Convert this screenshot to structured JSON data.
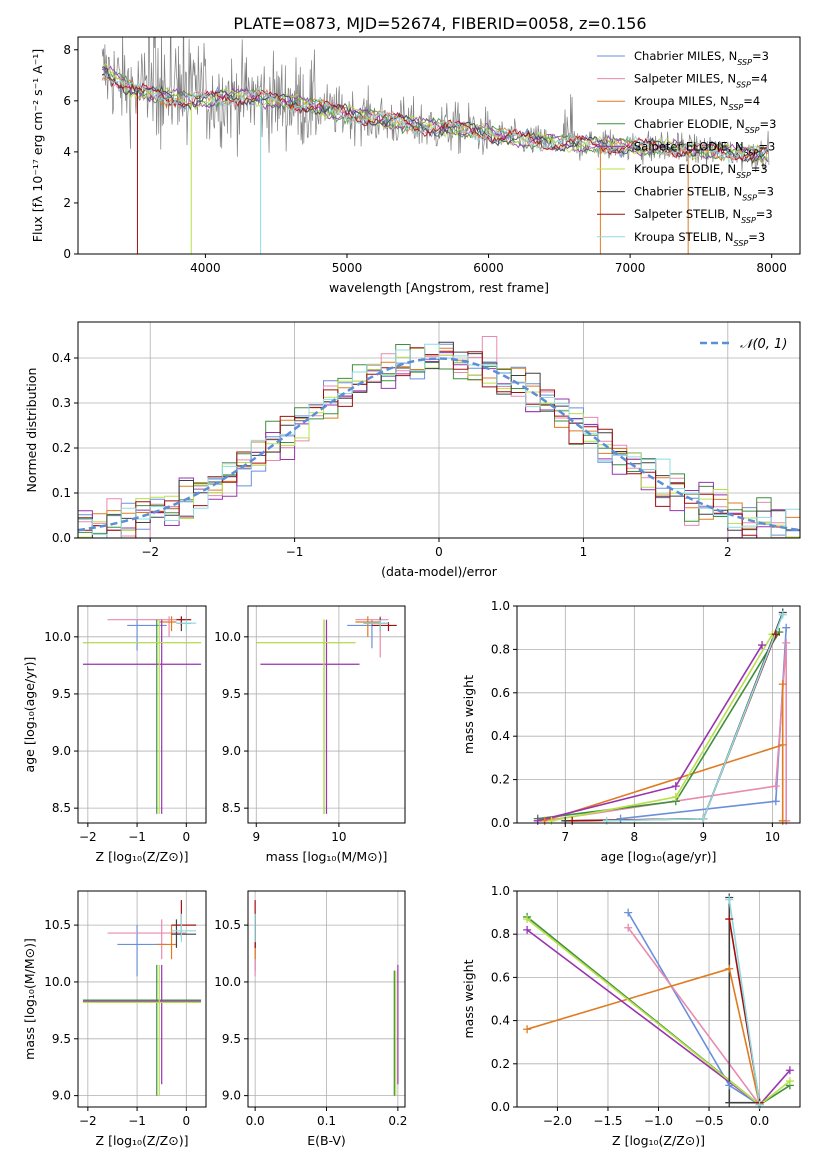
{
  "page": {
    "title": "PLATE=0873, MJD=52674, FIBERID=0058, z=0.156"
  },
  "colors": {
    "Chabrier MILES": "#6a8fdc",
    "Salpeter MILES": "#e88aaf",
    "Kroupa MILES": "#e07b20",
    "Chabrier ELODIE": "#3f8f3f",
    "Salpeter ELODIE": "#9a33b0",
    "Kroupa ELODIE": "#b8e04a",
    "Chabrier STELIB": "#404040",
    "Salpeter STELIB": "#a01010",
    "Kroupa STELIB": "#8fdbe0",
    "data": "#808080",
    "normal": "#5a8fd8"
  },
  "chart_data": [
    {
      "id": "spectrum",
      "type": "line",
      "title": "PLATE=0873, MJD=52674, FIBERID=0058, z=0.156",
      "xlabel": "wavelength [Angstrom, rest frame]",
      "ylabel": "Flux [fλ 10⁻¹⁷ erg cm⁻² s⁻¹ A⁻¹]",
      "xlim": [
        3100,
        8200
      ],
      "ylim": [
        0,
        8.5
      ],
      "xticks": [
        4000,
        5000,
        6000,
        7000,
        8000
      ],
      "yticks": [
        0,
        2,
        4,
        6,
        8
      ],
      "grid": false,
      "legend_position": "right",
      "legend": [
        "Chabrier MILES, N_SSP=3",
        "Salpeter MILES, N_SSP=4",
        "Kroupa MILES, N_SSP=4",
        "Chabrier ELODIE, N_SSP=3",
        "Salpeter ELODIE, N_SSP=3",
        "Kroupa ELODIE, N_SSP=3",
        "Chabrier STELIB, N_SSP=3",
        "Salpeter STELIB, N_SSP=3",
        "Kroupa STELIB, N_SSP=3"
      ],
      "continuum": {
        "x": [
          3300,
          3500,
          3700,
          3900,
          4100,
          4300,
          4500,
          4700,
          4900,
          5100,
          5300,
          5500,
          5700,
          5900,
          6100,
          6300,
          6500,
          6700,
          6900,
          7100,
          7300,
          7500,
          7700,
          7900
        ],
        "y": [
          7.1,
          6.4,
          6.2,
          6.0,
          6.1,
          6.2,
          6.0,
          5.9,
          5.6,
          5.4,
          5.2,
          5.05,
          4.95,
          4.85,
          4.6,
          4.45,
          4.35,
          4.3,
          4.25,
          4.2,
          4.15,
          4.05,
          4.0,
          3.9
        ]
      }
    },
    {
      "id": "residual_hist",
      "type": "line",
      "xlabel": "(data-model)/error",
      "ylabel": "Normed distribution",
      "xlim": [
        -2.5,
        2.5
      ],
      "ylim": [
        0,
        0.48
      ],
      "xticks": [
        -2,
        -1,
        0,
        1,
        2
      ],
      "xtick_labels": [
        "−2",
        "−1",
        "0",
        "1",
        "2"
      ],
      "yticks": [
        0,
        0.1,
        0.2,
        0.3,
        0.4
      ],
      "ytick_labels": [
        "0.0",
        "0.1",
        "0.2",
        "0.3",
        "0.4"
      ],
      "grid": true,
      "legend": [
        "𝒩(0, 1)"
      ],
      "legend_position": "top-right",
      "bin_width": 0.1
    },
    {
      "id": "age_vs_Z",
      "type": "scatter",
      "xlabel": "Z [log₁₀(Z/Z⊙)]",
      "ylabel": "age  [log₁₀(age/yr)]",
      "xlim": [
        -2.2,
        0.4
      ],
      "ylim": [
        8.37,
        10.27
      ],
      "xticks": [
        -2,
        -1,
        0
      ],
      "xtick_labels": [
        "−2",
        "−1",
        "0"
      ],
      "yticks": [
        8.5,
        9.0,
        9.5,
        10.0
      ],
      "ytick_labels": [
        "8.5",
        "9.0",
        "9.5",
        "10.0"
      ],
      "grid": true,
      "crosses": [
        {
          "s": "Chabrier MILES",
          "x": -1.0,
          "xe": [
            -1.2,
            -0.4
          ],
          "y": 10.1,
          "ye": [
            9.88,
            10.15
          ]
        },
        {
          "s": "Salpeter MILES",
          "x": -0.35,
          "xe": [
            -1.6,
            0.0
          ],
          "y": 10.15,
          "ye": [
            10.0,
            10.18
          ]
        },
        {
          "s": "Kroupa MILES",
          "x": -0.3,
          "xe": [
            -0.55,
            -0.2
          ],
          "y": 10.13,
          "ye": [
            10.05,
            10.18
          ]
        },
        {
          "s": "Chabrier ELODIE",
          "x": -0.6,
          "xe": [
            -2.1,
            0.3
          ],
          "y": 9.95,
          "ye": [
            8.45,
            10.15
          ]
        },
        {
          "s": "Salpeter ELODIE",
          "x": -0.5,
          "xe": [
            -2.1,
            0.3
          ],
          "y": 9.76,
          "ye": [
            8.45,
            10.15
          ]
        },
        {
          "s": "Kroupa ELODIE",
          "x": -0.55,
          "xe": [
            -2.1,
            0.3
          ],
          "y": 9.95,
          "ye": [
            8.45,
            10.15
          ]
        },
        {
          "s": "Chabrier STELIB",
          "x": -0.1,
          "xe": [
            -0.2,
            0.1
          ],
          "y": 10.12,
          "ye": [
            10.05,
            10.17
          ]
        },
        {
          "s": "Salpeter STELIB",
          "x": -0.1,
          "xe": [
            -0.2,
            0.1
          ],
          "y": 10.15,
          "ye": [
            10.1,
            10.18
          ]
        },
        {
          "s": "Kroupa STELIB",
          "x": 0.0,
          "xe": [
            -0.2,
            0.2
          ],
          "y": 10.12,
          "ye": [
            10.05,
            10.15
          ]
        }
      ]
    },
    {
      "id": "age_vs_mass",
      "type": "scatter",
      "xlabel": "mass [log₁₀(M/M⊙)]",
      "ylabel": "",
      "xlim": [
        8.9,
        10.8
      ],
      "ylim": [
        8.37,
        10.27
      ],
      "xticks": [
        9,
        10
      ],
      "xtick_labels": [
        "9",
        "10"
      ],
      "yticks": [
        8.5,
        9.0,
        9.5,
        10.0
      ],
      "ytick_labels": [
        "8.5",
        "9.0",
        "9.5",
        "10.0"
      ],
      "grid": true,
      "crosses": [
        {
          "s": "Chabrier MILES",
          "x": 10.4,
          "xe": [
            10.1,
            10.5
          ],
          "y": 10.1,
          "ye": [
            9.9,
            10.15
          ]
        },
        {
          "s": "Salpeter MILES",
          "x": 10.5,
          "xe": [
            10.2,
            10.6
          ],
          "y": 10.15,
          "ye": [
            9.82,
            10.18
          ]
        },
        {
          "s": "Kroupa MILES",
          "x": 10.35,
          "xe": [
            10.2,
            10.5
          ],
          "y": 10.13,
          "ye": [
            10.0,
            10.18
          ]
        },
        {
          "s": "Chabrier ELODIE",
          "x": 9.82,
          "xe": [
            9.0,
            10.2
          ],
          "y": 9.95,
          "ye": [
            8.45,
            10.15
          ]
        },
        {
          "s": "Salpeter ELODIE",
          "x": 9.85,
          "xe": [
            9.05,
            10.25
          ],
          "y": 9.76,
          "ye": [
            8.45,
            10.15
          ]
        },
        {
          "s": "Kroupa ELODIE",
          "x": 9.82,
          "xe": [
            9.0,
            10.2
          ],
          "y": 9.95,
          "ye": [
            8.45,
            10.15
          ]
        },
        {
          "s": "Chabrier STELIB",
          "x": 10.5,
          "xe": [
            10.3,
            10.6
          ],
          "y": 10.12,
          "ye": [
            10.05,
            10.17
          ]
        },
        {
          "s": "Salpeter STELIB",
          "x": 10.6,
          "xe": [
            10.4,
            10.7
          ],
          "y": 10.1,
          "ye": [
            10.05,
            10.13
          ]
        },
        {
          "s": "Kroupa STELIB",
          "x": 10.5,
          "xe": [
            10.3,
            10.6
          ],
          "y": 10.12,
          "ye": [
            10.05,
            10.15
          ]
        }
      ]
    },
    {
      "id": "weight_vs_age",
      "type": "line",
      "xlabel": "age  [log₁₀(age/yr)]",
      "ylabel": "mass weight",
      "xlim": [
        6.3,
        10.4
      ],
      "ylim": [
        0,
        1.0
      ],
      "xticks": [
        7,
        8,
        9,
        10
      ],
      "xtick_labels": [
        "7",
        "8",
        "9",
        "10"
      ],
      "yticks": [
        0,
        0.2,
        0.4,
        0.6,
        0.8,
        1.0
      ],
      "ytick_labels": [
        "0.0",
        "0.2",
        "0.4",
        "0.6",
        "0.8",
        "1.0"
      ],
      "grid": true,
      "series": [
        {
          "s": "Chabrier MILES",
          "x": [
            7.8,
            10.05,
            10.2
          ],
          "y": [
            0.02,
            0.1,
            0.9
          ]
        },
        {
          "s": "Salpeter MILES",
          "x": [
            6.7,
            10.05,
            10.2,
            10.2
          ],
          "y": [
            0.01,
            0.17,
            0.83,
            0.01
          ]
        },
        {
          "s": "Kroupa MILES",
          "x": [
            6.7,
            10.15,
            10.15,
            10.15
          ],
          "y": [
            0.01,
            0.36,
            0.64,
            0.01
          ]
        },
        {
          "s": "Chabrier ELODIE",
          "x": [
            6.6,
            8.6,
            10.1
          ],
          "y": [
            0.02,
            0.1,
            0.88
          ]
        },
        {
          "s": "Salpeter ELODIE",
          "x": [
            6.6,
            8.6,
            9.85
          ],
          "y": [
            0.01,
            0.17,
            0.82
          ]
        },
        {
          "s": "Kroupa ELODIE",
          "x": [
            6.8,
            8.6,
            10.0
          ],
          "y": [
            0.01,
            0.12,
            0.87
          ]
        },
        {
          "s": "Chabrier STELIB",
          "x": [
            7.0,
            9.0,
            10.15
          ],
          "y": [
            0.01,
            0.02,
            0.97
          ]
        },
        {
          "s": "Salpeter STELIB",
          "x": [
            7.1,
            9.0,
            10.05
          ],
          "y": [
            0.01,
            0.02,
            0.87
          ]
        },
        {
          "s": "Kroupa STELIB",
          "x": [
            7.6,
            9.0,
            10.15
          ],
          "y": [
            0.01,
            0.02,
            0.96
          ]
        }
      ]
    },
    {
      "id": "mass_vs_Z",
      "type": "scatter",
      "xlabel": "Z [log₁₀(Z/Z⊙)]",
      "ylabel": "mass [log₁₀(M/M⊙)]",
      "xlim": [
        -2.2,
        0.4
      ],
      "ylim": [
        8.9,
        10.8
      ],
      "xticks": [
        -2,
        -1,
        0
      ],
      "xtick_labels": [
        "−2",
        "−1",
        "0"
      ],
      "yticks": [
        9.0,
        9.5,
        10.0,
        10.5
      ],
      "ytick_labels": [
        "9.0",
        "9.5",
        "10.0",
        "10.5"
      ],
      "grid": true,
      "crosses": [
        {
          "s": "Chabrier MILES",
          "x": -1.0,
          "xe": [
            -1.4,
            -0.4
          ],
          "y": 10.33,
          "ye": [
            10.05,
            10.5
          ]
        },
        {
          "s": "Salpeter MILES",
          "x": -0.5,
          "xe": [
            -1.6,
            0.0
          ],
          "y": 10.43,
          "ye": [
            10.2,
            10.55
          ]
        },
        {
          "s": "Kroupa MILES",
          "x": -0.3,
          "xe": [
            -0.6,
            -0.2
          ],
          "y": 10.33,
          "ye": [
            10.2,
            10.5
          ]
        },
        {
          "s": "Chabrier ELODIE",
          "x": -0.6,
          "xe": [
            -2.1,
            0.3
          ],
          "y": 9.84,
          "ye": [
            9.0,
            10.15
          ]
        },
        {
          "s": "Salpeter ELODIE",
          "x": -0.5,
          "xe": [
            -2.1,
            0.3
          ],
          "y": 9.83,
          "ye": [
            9.1,
            10.15
          ]
        },
        {
          "s": "Kroupa ELODIE",
          "x": -0.55,
          "xe": [
            -2.1,
            0.3
          ],
          "y": 9.82,
          "ye": [
            9.0,
            10.15
          ]
        },
        {
          "s": "Chabrier STELIB",
          "x": -0.2,
          "xe": [
            -0.3,
            0.2
          ],
          "y": 10.42,
          "ye": [
            10.3,
            10.55
          ]
        },
        {
          "s": "Salpeter STELIB",
          "x": -0.1,
          "xe": [
            -0.3,
            0.2
          ],
          "y": 10.5,
          "ye": [
            10.4,
            10.72
          ]
        },
        {
          "s": "Kroupa STELIB",
          "x": -0.1,
          "xe": [
            -0.3,
            0.2
          ],
          "y": 10.45,
          "ye": [
            10.35,
            10.6
          ]
        }
      ]
    },
    {
      "id": "mass_vs_EBV",
      "type": "scatter",
      "xlabel": "E(B-V)",
      "ylabel": "",
      "xlim": [
        -0.01,
        0.21
      ],
      "ylim": [
        8.9,
        10.8
      ],
      "xticks": [
        0.0,
        0.1,
        0.2
      ],
      "xtick_labels": [
        "0.0",
        "0.1",
        "0.2"
      ],
      "yticks": [
        9.0,
        9.5,
        10.0,
        10.5
      ],
      "ytick_labels": [
        "9.0",
        "9.5",
        "10.0",
        "10.5"
      ],
      "grid": true,
      "crosses": [
        {
          "s": "Chabrier MILES",
          "x": 0.0,
          "xe": [
            0.0,
            0.0
          ],
          "y": 10.4,
          "ye": [
            10.1,
            10.55
          ]
        },
        {
          "s": "Salpeter MILES",
          "x": 0.0,
          "xe": [
            0.0,
            0.0
          ],
          "y": 10.4,
          "ye": [
            10.05,
            10.6
          ]
        },
        {
          "s": "Kroupa MILES",
          "x": 0.0,
          "xe": [
            0.0,
            0.0
          ],
          "y": 10.33,
          "ye": [
            10.2,
            10.5
          ]
        },
        {
          "s": "Chabrier ELODIE",
          "x": 0.195,
          "xe": [
            0.195,
            0.195
          ],
          "y": 9.84,
          "ye": [
            9.0,
            10.1
          ]
        },
        {
          "s": "Salpeter ELODIE",
          "x": 0.2,
          "xe": [
            0.2,
            0.2
          ],
          "y": 9.83,
          "ye": [
            9.1,
            10.15
          ]
        },
        {
          "s": "Kroupa ELODIE",
          "x": 0.197,
          "xe": [
            0.197,
            0.197
          ],
          "y": 9.82,
          "ye": [
            9.0,
            10.1
          ]
        },
        {
          "s": "Chabrier STELIB",
          "x": 0.0,
          "xe": [
            0.0,
            0.0
          ],
          "y": 10.42,
          "ye": [
            10.3,
            10.6
          ]
        },
        {
          "s": "Salpeter STELIB",
          "x": 0.0,
          "xe": [
            0.0,
            0.0
          ],
          "y": 10.5,
          "ye": [
            10.3,
            10.72
          ]
        },
        {
          "s": "Kroupa STELIB",
          "x": 0.0,
          "xe": [
            0.0,
            0.0
          ],
          "y": 10.45,
          "ye": [
            10.35,
            10.6
          ]
        }
      ]
    },
    {
      "id": "weight_vs_Z",
      "type": "line",
      "xlabel": "Z [log₁₀(Z/Z⊙)]",
      "ylabel": "mass weight",
      "xlim": [
        -2.4,
        0.4
      ],
      "ylim": [
        0,
        1.0
      ],
      "xticks": [
        -2.0,
        -1.5,
        -1.0,
        -0.5,
        0.0
      ],
      "xtick_labels": [
        "−2.0",
        "−1.5",
        "−1.0",
        "−0.5",
        "0.0"
      ],
      "yticks": [
        0,
        0.2,
        0.4,
        0.6,
        0.8,
        1.0
      ],
      "ytick_labels": [
        "0.0",
        "0.2",
        "0.4",
        "0.6",
        "0.8",
        "1.0"
      ],
      "grid": true,
      "series": [
        {
          "s": "Chabrier MILES",
          "x": [
            -1.3,
            -0.3,
            0.0
          ],
          "y": [
            0.9,
            0.1,
            0.01
          ]
        },
        {
          "s": "Salpeter MILES",
          "x": [
            -1.3,
            0.0,
            0.0
          ],
          "y": [
            0.83,
            0.01,
            0.01
          ]
        },
        {
          "s": "Kroupa MILES",
          "x": [
            -2.3,
            -0.3,
            0.0
          ],
          "y": [
            0.36,
            0.64,
            0.01
          ]
        },
        {
          "s": "Chabrier ELODIE",
          "x": [
            -2.3,
            0.0,
            0.3
          ],
          "y": [
            0.88,
            0.01,
            0.1
          ]
        },
        {
          "s": "Salpeter ELODIE",
          "x": [
            -2.3,
            0.0,
            0.3
          ],
          "y": [
            0.82,
            0.01,
            0.17
          ]
        },
        {
          "s": "Kroupa ELODIE",
          "x": [
            -2.3,
            0.0,
            0.3
          ],
          "y": [
            0.87,
            0.01,
            0.12
          ]
        },
        {
          "s": "Chabrier STELIB",
          "x": [
            -0.3,
            -0.3,
            0.0
          ],
          "y": [
            0.97,
            0.02,
            0.02
          ]
        },
        {
          "s": "Salpeter STELIB",
          "x": [
            -0.3,
            0.0
          ],
          "y": [
            0.87,
            0.02
          ]
        },
        {
          "s": "Kroupa STELIB",
          "x": [
            -0.3,
            0.0
          ],
          "y": [
            0.96,
            0.01
          ]
        }
      ]
    }
  ]
}
